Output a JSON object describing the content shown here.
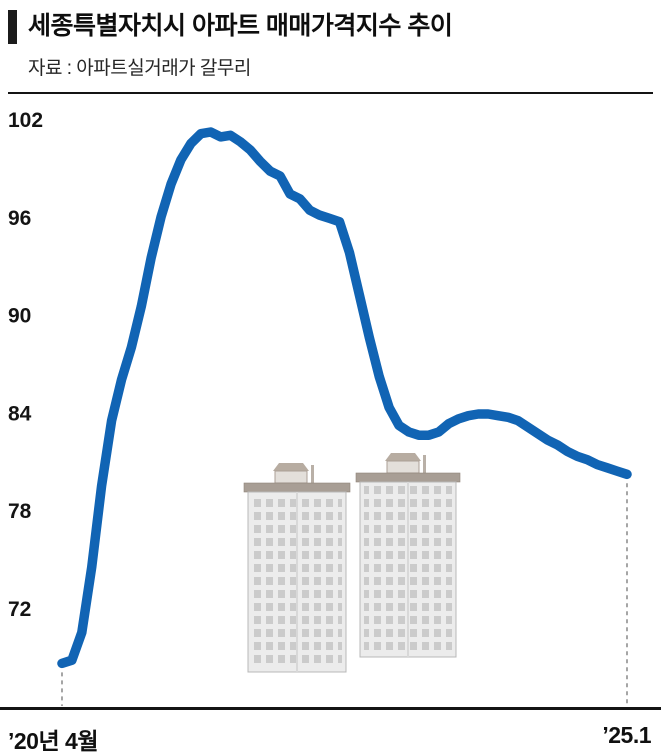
{
  "header": {
    "title": "세종특별자치시 아파트 매매가격지수 추이",
    "source": "자료 : 아파트실거래가 갈무리"
  },
  "chart_data": {
    "type": "line",
    "title": "세종특별자치시 아파트 매매가격지수 추이",
    "series_name": "아파트 매매가격지수",
    "line_color": "#1164b4",
    "grid": false,
    "legend": false,
    "y_ticks": [
      102,
      96,
      90,
      84,
      78,
      72
    ],
    "ylim": [
      66.5,
      103
    ],
    "x_start_label": "’20년 4월",
    "x_end_label": "’25.1",
    "x": [
      "2020-04",
      "2020-05",
      "2020-06",
      "2020-07",
      "2020-08",
      "2020-09",
      "2020-10",
      "2020-11",
      "2020-12",
      "2021-01",
      "2021-02",
      "2021-03",
      "2021-04",
      "2021-05",
      "2021-06",
      "2021-07",
      "2021-08",
      "2021-09",
      "2021-10",
      "2021-11",
      "2021-12",
      "2022-01",
      "2022-02",
      "2022-03",
      "2022-04",
      "2022-05",
      "2022-06",
      "2022-07",
      "2022-08",
      "2022-09",
      "2022-10",
      "2022-11",
      "2022-12",
      "2023-01",
      "2023-02",
      "2023-03",
      "2023-04",
      "2023-05",
      "2023-06",
      "2023-07",
      "2023-08",
      "2023-09",
      "2023-10",
      "2023-11",
      "2023-12",
      "2024-01",
      "2024-02",
      "2024-03",
      "2024-04",
      "2024-05",
      "2024-06",
      "2024-07",
      "2024-08",
      "2024-09",
      "2024-10",
      "2024-11",
      "2024-12",
      "2025-01"
    ],
    "values": [
      68.6,
      68.8,
      70.5,
      74.5,
      79.5,
      83.5,
      86.0,
      88.0,
      90.5,
      93.5,
      96.0,
      98.0,
      99.5,
      100.5,
      101.1,
      101.2,
      100.9,
      101.0,
      100.6,
      100.1,
      99.4,
      98.8,
      98.5,
      97.4,
      97.1,
      96.4,
      96.1,
      95.9,
      95.7,
      93.8,
      91.2,
      88.6,
      86.2,
      84.3,
      83.2,
      82.8,
      82.6,
      82.6,
      82.8,
      83.3,
      83.6,
      83.8,
      83.9,
      83.9,
      83.8,
      83.7,
      83.5,
      83.1,
      82.7,
      82.3,
      82.0,
      81.6,
      81.3,
      81.1,
      80.8,
      80.6,
      80.4,
      80.2
    ]
  },
  "icons": {
    "buildings": "apartment-buildings-illustration"
  }
}
